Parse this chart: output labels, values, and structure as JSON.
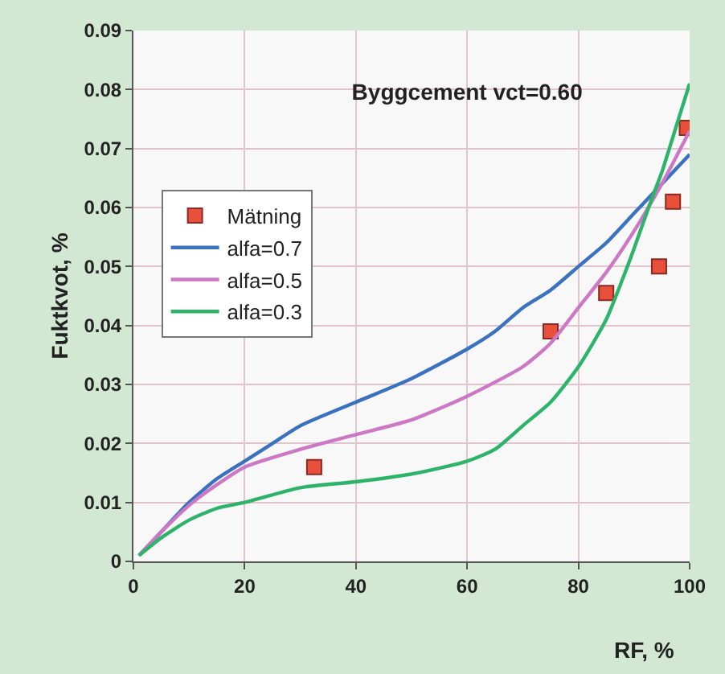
{
  "chart_data": {
    "type": "line",
    "title": "Byggcement vct=0.60",
    "xlabel": "RF, %",
    "ylabel": "Fuktkvot, %",
    "xlim": [
      0,
      100
    ],
    "xticks": [
      0,
      20,
      40,
      60,
      80,
      100
    ],
    "ylim": [
      0,
      0.09
    ],
    "yticks": [
      0,
      0.01,
      0.02,
      0.03,
      0.04,
      0.05,
      0.06,
      0.07,
      0.08,
      0.09
    ],
    "grid": true,
    "legend": "top left",
    "line_style": "solid",
    "series": [
      {
        "name": "Mätning",
        "type": "scatter",
        "marker": "square",
        "color": "#e8503c",
        "x": [
          32.5,
          75,
          85,
          94.5,
          97,
          99.5
        ],
        "values": [
          0.016,
          0.039,
          0.0455,
          0.05,
          0.061,
          0.0735
        ]
      },
      {
        "name": "alfa=0.7",
        "color": "#3a72c0",
        "x": [
          1,
          5,
          10,
          15,
          20,
          25,
          30,
          40,
          50,
          60,
          65,
          70,
          75,
          80,
          85,
          90,
          95,
          100
        ],
        "values": [
          0.001,
          0.005,
          0.01,
          0.014,
          0.017,
          0.02,
          0.023,
          0.027,
          0.031,
          0.036,
          0.039,
          0.043,
          0.046,
          0.05,
          0.054,
          0.059,
          0.064,
          0.069
        ]
      },
      {
        "name": "alfa=0.5",
        "color": "#cc78c4",
        "x": [
          1,
          5,
          10,
          15,
          20,
          30,
          40,
          50,
          60,
          70,
          75,
          80,
          85,
          90,
          95,
          100
        ],
        "values": [
          0.001,
          0.005,
          0.0095,
          0.013,
          0.016,
          0.019,
          0.0215,
          0.024,
          0.028,
          0.033,
          0.037,
          0.043,
          0.049,
          0.056,
          0.064,
          0.073
        ]
      },
      {
        "name": "alfa=0.3",
        "color": "#2db36a",
        "x": [
          1,
          5,
          10,
          15,
          20,
          30,
          40,
          50,
          60,
          65,
          70,
          75,
          80,
          85,
          88,
          90,
          93,
          95,
          98,
          100
        ],
        "values": [
          0.001,
          0.004,
          0.007,
          0.009,
          0.01,
          0.0125,
          0.0135,
          0.0148,
          0.017,
          0.019,
          0.023,
          0.027,
          0.033,
          0.041,
          0.048,
          0.053,
          0.061,
          0.066,
          0.075,
          0.081
        ]
      }
    ]
  }
}
